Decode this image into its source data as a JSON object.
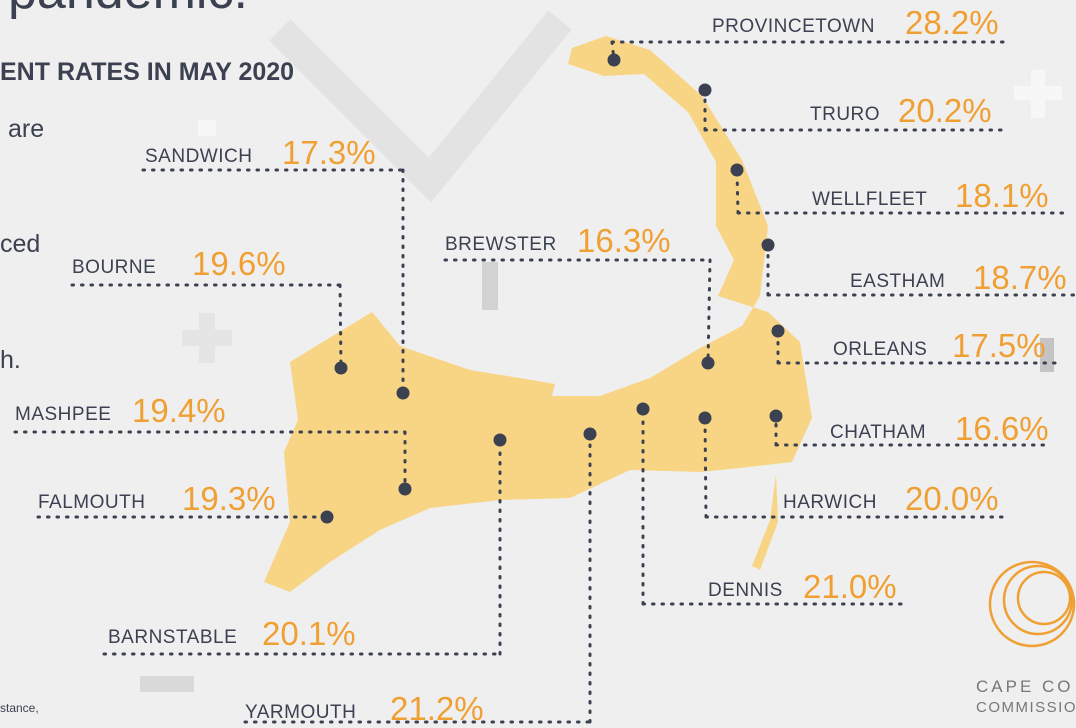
{
  "header": {
    "title_fragment": "pandemic.",
    "subtitle_fragment": "ENT RATES IN MAY 2020",
    "text_fragments": [
      "are",
      "ced",
      "h."
    ],
    "footnote_fragment": "stance,"
  },
  "logo": {
    "line1": "CAPE CO",
    "line2": "COMMISSIO"
  },
  "towns": [
    {
      "name": "PROVINCETOWN",
      "rate": "28.2%"
    },
    {
      "name": "TRURO",
      "rate": "20.2%"
    },
    {
      "name": "SANDWICH",
      "rate": "17.3%"
    },
    {
      "name": "WELLFLEET",
      "rate": "18.1%"
    },
    {
      "name": "BREWSTER",
      "rate": "16.3%"
    },
    {
      "name": "BOURNE",
      "rate": "19.6%"
    },
    {
      "name": "EASTHAM",
      "rate": "18.7%"
    },
    {
      "name": "ORLEANS",
      "rate": "17.5%"
    },
    {
      "name": "MASHPEE",
      "rate": "19.4%"
    },
    {
      "name": "CHATHAM",
      "rate": "16.6%"
    },
    {
      "name": "FALMOUTH",
      "rate": "19.3%"
    },
    {
      "name": "HARWICH",
      "rate": "20.0%"
    },
    {
      "name": "DENNIS",
      "rate": "21.0%"
    },
    {
      "name": "BARNSTABLE",
      "rate": "20.1%"
    },
    {
      "name": "YARMOUTH",
      "rate": "21.2%"
    }
  ]
}
